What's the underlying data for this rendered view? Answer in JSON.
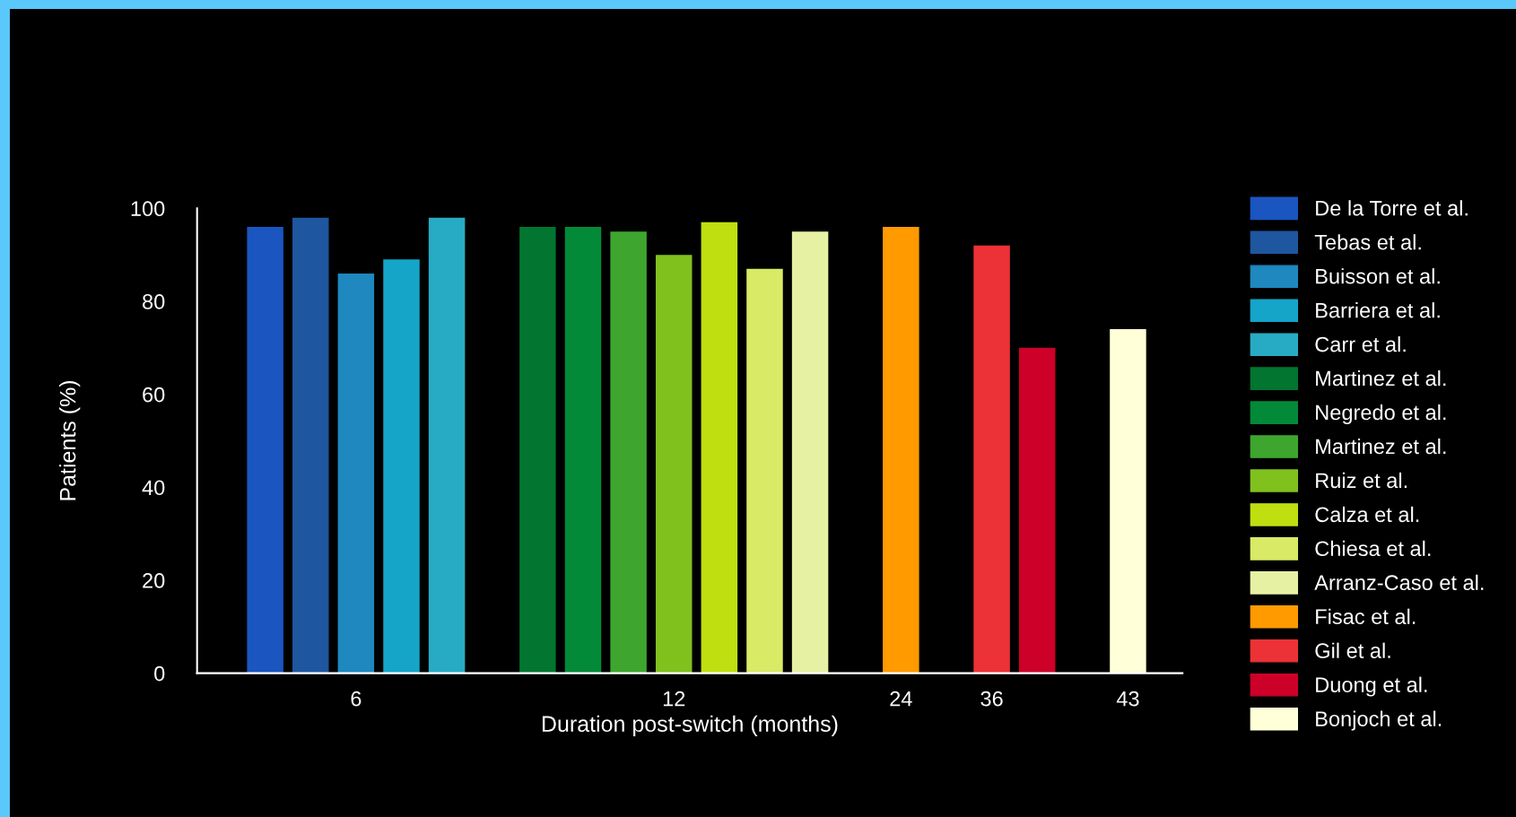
{
  "chart_data": {
    "type": "bar",
    "xlabel": "Duration post-switch (months)",
    "ylabel": "Patients (%)",
    "categories": [
      null,
      null,
      null,
      "6",
      null,
      null,
      null,
      null,
      null,
      null,
      "12",
      null,
      null,
      null,
      null,
      "24",
      null,
      "36",
      null,
      null,
      "43"
    ],
    "ylim": [
      0,
      100
    ],
    "yticks": [
      0,
      20,
      40,
      60,
      80,
      100
    ],
    "grid": false,
    "legend": "right",
    "series": [
      {
        "name": "De la Torre et al.",
        "color": "#1a55c0",
        "values": [
          null,
          96,
          null,
          null,
          null,
          null,
          null,
          null,
          null,
          null,
          null,
          null,
          null,
          null,
          null,
          null,
          null,
          null,
          null,
          null,
          null
        ]
      },
      {
        "name": "Tebas et al.",
        "color": "#1e56a0",
        "values": [
          null,
          null,
          98,
          null,
          null,
          null,
          null,
          null,
          null,
          null,
          null,
          null,
          null,
          null,
          null,
          null,
          null,
          null,
          null,
          null,
          null
        ]
      },
      {
        "name": "Buisson et al.",
        "color": "#1e88bf",
        "values": [
          null,
          null,
          null,
          86,
          null,
          null,
          null,
          null,
          null,
          null,
          null,
          null,
          null,
          null,
          null,
          null,
          null,
          null,
          null,
          null,
          null
        ]
      },
      {
        "name": "Barriera et al.",
        "color": "#14a5c8",
        "values": [
          null,
          null,
          null,
          null,
          89,
          null,
          null,
          null,
          null,
          null,
          null,
          null,
          null,
          null,
          null,
          null,
          null,
          null,
          null,
          null,
          null
        ]
      },
      {
        "name": "Carr et al.",
        "color": "#27abc4",
        "values": [
          null,
          null,
          null,
          null,
          null,
          98,
          null,
          null,
          null,
          null,
          null,
          null,
          null,
          null,
          null,
          null,
          null,
          null,
          null,
          null,
          null
        ]
      },
      {
        "name": "Martinez et al.",
        "color": "#027530",
        "values": [
          null,
          null,
          null,
          null,
          null,
          null,
          null,
          96,
          null,
          null,
          null,
          null,
          null,
          null,
          null,
          null,
          null,
          null,
          null,
          null,
          null
        ]
      },
      {
        "name": "Negredo et al.",
        "color": "#038a38",
        "values": [
          null,
          null,
          null,
          null,
          null,
          null,
          null,
          null,
          96,
          null,
          null,
          null,
          null,
          null,
          null,
          null,
          null,
          null,
          null,
          null,
          null
        ]
      },
      {
        "name": "Martinez et al.",
        "color": "#3ea62f",
        "values": [
          null,
          null,
          null,
          null,
          null,
          null,
          null,
          null,
          null,
          95,
          null,
          null,
          null,
          null,
          null,
          null,
          null,
          null,
          null,
          null,
          null
        ]
      },
      {
        "name": "Ruiz et al.",
        "color": "#80c11e",
        "values": [
          null,
          null,
          null,
          null,
          null,
          null,
          null,
          null,
          null,
          null,
          90,
          null,
          null,
          null,
          null,
          null,
          null,
          null,
          null,
          null,
          null
        ]
      },
      {
        "name": "Calza et al.",
        "color": "#c0df10",
        "values": [
          null,
          null,
          null,
          null,
          null,
          null,
          null,
          null,
          null,
          null,
          null,
          97,
          null,
          null,
          null,
          null,
          null,
          null,
          null,
          null,
          null
        ]
      },
      {
        "name": "Chiesa et al.",
        "color": "#d8ea66",
        "values": [
          null,
          null,
          null,
          null,
          null,
          null,
          null,
          null,
          null,
          null,
          null,
          null,
          87,
          null,
          null,
          null,
          null,
          null,
          null,
          null,
          null
        ]
      },
      {
        "name": "Arranz-Caso et al.",
        "color": "#e6f1a4",
        "values": [
          null,
          null,
          null,
          null,
          null,
          null,
          null,
          null,
          null,
          null,
          null,
          null,
          null,
          95,
          null,
          null,
          null,
          null,
          null,
          null,
          null
        ]
      },
      {
        "name": "Fisac et al.",
        "color": "#ff9a00",
        "values": [
          null,
          null,
          null,
          null,
          null,
          null,
          null,
          null,
          null,
          null,
          null,
          null,
          null,
          null,
          null,
          96,
          null,
          null,
          null,
          null,
          null
        ]
      },
      {
        "name": "Gil et al.",
        "color": "#ec3237",
        "values": [
          null,
          null,
          null,
          null,
          null,
          null,
          null,
          null,
          null,
          null,
          null,
          null,
          null,
          null,
          null,
          null,
          null,
          92,
          null,
          null,
          null
        ]
      },
      {
        "name": "Duong et al.",
        "color": "#cc0028",
        "values": [
          null,
          null,
          null,
          null,
          null,
          null,
          null,
          null,
          null,
          null,
          null,
          null,
          null,
          null,
          null,
          null,
          null,
          null,
          70,
          null,
          null
        ]
      },
      {
        "name": "Bonjoch et al.",
        "color": "#ffffd8",
        "values": [
          null,
          null,
          null,
          null,
          null,
          null,
          null,
          null,
          null,
          null,
          null,
          null,
          null,
          null,
          null,
          null,
          null,
          null,
          null,
          null,
          74
        ]
      }
    ]
  }
}
